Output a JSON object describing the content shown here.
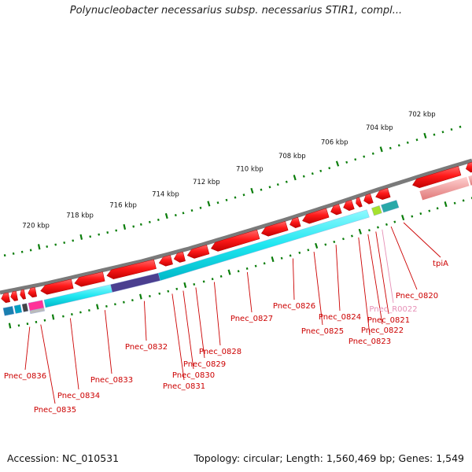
{
  "title": "Polynucleobacter necessarius subsp. necessarius STIR1, compl...",
  "footer": {
    "accession": "Accession: NC_010531",
    "summary": "Topology: circular; Length: 1,560,469 bp; Genes: 1,549"
  },
  "colors": {
    "backbone": "#7a7a7a",
    "gene_forward": "#e60000",
    "cds_bar": "#00e5ee",
    "tick": "#0a7d0a",
    "label_line": "#cc0000",
    "rna_label": "#e68fb6"
  },
  "scale_labels": [
    "702 kbp",
    "704 kbp",
    "706 kbp",
    "708 kbp",
    "710 kbp",
    "712 kbp",
    "714 kbp",
    "716 kbp",
    "718 kbp",
    "720 kbp"
  ],
  "genes": [
    {
      "name": "tpiA",
      "color": "#cc0000"
    },
    {
      "name": "Pnec_0820",
      "color": "#cc0000"
    },
    {
      "name": "Pnec_R0022",
      "color": "#e68fb6"
    },
    {
      "name": "Pnec_0821",
      "color": "#cc0000"
    },
    {
      "name": "Pnec_0822",
      "color": "#cc0000"
    },
    {
      "name": "Pnec_0823",
      "color": "#cc0000"
    },
    {
      "name": "Pnec_0824",
      "color": "#cc0000"
    },
    {
      "name": "Pnec_0825",
      "color": "#cc0000"
    },
    {
      "name": "Pnec_0826",
      "color": "#cc0000"
    },
    {
      "name": "Pnec_0827",
      "color": "#cc0000"
    },
    {
      "name": "Pnec_0828",
      "color": "#cc0000"
    },
    {
      "name": "Pnec_0829",
      "color": "#cc0000"
    },
    {
      "name": "Pnec_0830",
      "color": "#cc0000"
    },
    {
      "name": "Pnec_0831",
      "color": "#cc0000"
    },
    {
      "name": "Pnec_0832",
      "color": "#cc0000"
    },
    {
      "name": "Pnec_0833",
      "color": "#cc0000"
    },
    {
      "name": "Pnec_0834",
      "color": "#cc0000"
    },
    {
      "name": "Pnec_0835",
      "color": "#cc0000"
    },
    {
      "name": "Pnec_0836",
      "color": "#cc0000"
    }
  ]
}
